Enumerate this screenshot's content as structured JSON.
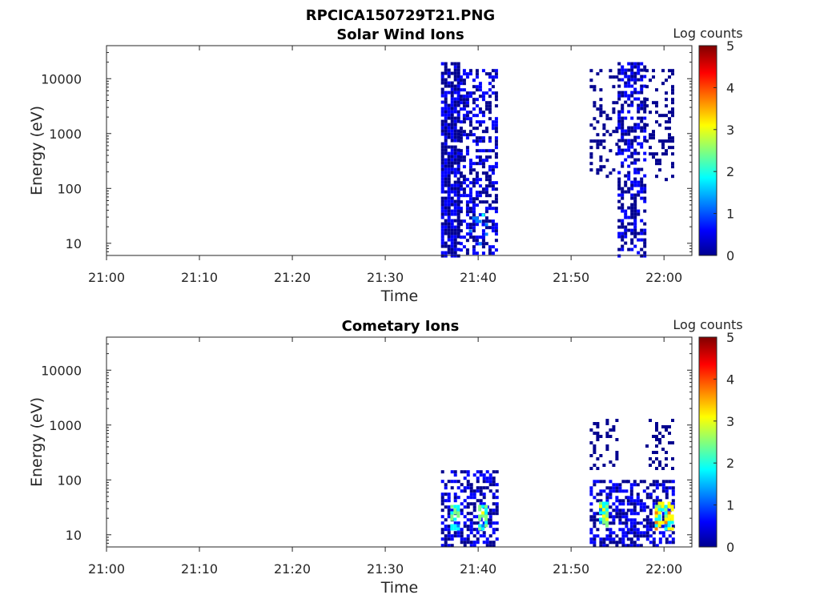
{
  "figure_title": "RPCICA150729T21.PNG",
  "colorbar_label": "Log counts",
  "colormap": [
    "#00008f",
    "#0000ff",
    "#0080ff",
    "#00ffff",
    "#80ff80",
    "#ffff00",
    "#ff8000",
    "#ff0000",
    "#800000"
  ],
  "chart_data": [
    {
      "type": "heatmap",
      "title": "Solar Wind Ions",
      "xlabel": "Time",
      "ylabel": "Energy (eV)",
      "yscale": "log",
      "xlim": [
        "21:00",
        "22:03"
      ],
      "ylim": [
        6,
        40000
      ],
      "x_ticks": [
        "21:00",
        "21:10",
        "21:20",
        "21:30",
        "21:40",
        "21:50",
        "22:00"
      ],
      "y_ticks": [
        10,
        100,
        1000,
        10000
      ],
      "colorbar": {
        "label": "Log counts",
        "range": [
          0,
          5
        ],
        "ticks": [
          0,
          1,
          2,
          3,
          4,
          5
        ]
      },
      "grid": false,
      "count_regions": [
        {
          "time": [
            "21:36",
            "21:38"
          ],
          "energy": [
            6,
            20000
          ],
          "log_counts": [
            0,
            1
          ],
          "density": "high"
        },
        {
          "time": [
            "21:38",
            "21:42"
          ],
          "energy": [
            6,
            15000
          ],
          "log_counts": [
            0,
            1
          ],
          "density": "medium"
        },
        {
          "time": [
            "21:39",
            "21:41"
          ],
          "energy": [
            10,
            35
          ],
          "log_counts": [
            1,
            2
          ],
          "density": "low"
        },
        {
          "time": [
            "21:52",
            "21:55"
          ],
          "energy": [
            150,
            15000
          ],
          "log_counts": [
            0,
            0.5
          ],
          "density": "low"
        },
        {
          "time": [
            "21:55",
            "21:58"
          ],
          "energy": [
            6,
            20000
          ],
          "log_counts": [
            0,
            1
          ],
          "density": "medium"
        },
        {
          "time": [
            "21:58",
            "22:01"
          ],
          "energy": [
            150,
            15000
          ],
          "log_counts": [
            0,
            0.5
          ],
          "density": "low"
        }
      ]
    },
    {
      "type": "heatmap",
      "title": "Cometary Ions",
      "xlabel": "Time",
      "ylabel": "Energy (eV)",
      "yscale": "log",
      "xlim": [
        "21:00",
        "22:03"
      ],
      "ylim": [
        6,
        40000
      ],
      "x_ticks": [
        "21:00",
        "21:10",
        "21:20",
        "21:30",
        "21:40",
        "21:50",
        "22:00"
      ],
      "y_ticks": [
        10,
        100,
        1000,
        10000
      ],
      "colorbar": {
        "label": "Log counts",
        "range": [
          0,
          5
        ],
        "ticks": [
          0,
          1,
          2,
          3,
          4,
          5
        ]
      },
      "grid": false,
      "count_regions": [
        {
          "time": [
            "21:36",
            "21:42"
          ],
          "energy": [
            6,
            150
          ],
          "log_counts": [
            0,
            1
          ],
          "density": "medium"
        },
        {
          "time": [
            "21:37",
            "21:38"
          ],
          "energy": [
            12,
            35
          ],
          "log_counts": [
            1.5,
            2.5
          ],
          "density": "high"
        },
        {
          "time": [
            "21:40",
            "21:41"
          ],
          "energy": [
            12,
            35
          ],
          "log_counts": [
            1.5,
            3
          ],
          "density": "high"
        },
        {
          "time": [
            "21:52",
            "21:55"
          ],
          "energy": [
            150,
            1300
          ],
          "log_counts": [
            0,
            0.5
          ],
          "density": "low"
        },
        {
          "time": [
            "21:52",
            "21:56"
          ],
          "energy": [
            6,
            100
          ],
          "log_counts": [
            0,
            1
          ],
          "density": "medium"
        },
        {
          "time": [
            "21:53",
            "21:54"
          ],
          "energy": [
            15,
            40
          ],
          "log_counts": [
            1.5,
            3
          ],
          "density": "high"
        },
        {
          "time": [
            "21:56",
            "22:01"
          ],
          "energy": [
            6,
            100
          ],
          "log_counts": [
            0,
            1
          ],
          "density": "medium"
        },
        {
          "time": [
            "21:59",
            "22:01"
          ],
          "energy": [
            12,
            40
          ],
          "log_counts": [
            1.5,
            3.5
          ],
          "density": "high"
        },
        {
          "time": [
            "21:58",
            "22:01"
          ],
          "energy": [
            150,
            1300
          ],
          "log_counts": [
            0,
            0.5
          ],
          "density": "low"
        }
      ]
    }
  ]
}
